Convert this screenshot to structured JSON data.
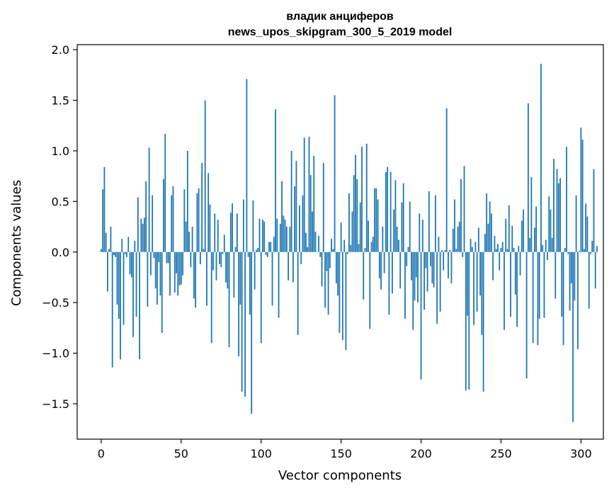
{
  "chart_data": {
    "type": "bar",
    "title": "владик анциферов",
    "subtitle": "news_upos_skipgram_300_5_2019 model",
    "xlabel": "Vector components",
    "ylabel": "Components values",
    "xlim": [
      -15,
      314
    ],
    "ylim": [
      -1.85,
      2.05
    ],
    "xticks": [
      0,
      50,
      100,
      150,
      200,
      250,
      300
    ],
    "yticks": [
      -1.5,
      -1.0,
      -0.5,
      0.0,
      0.5,
      1.0,
      1.5,
      2.0
    ],
    "ytick_labels": [
      "−1.5",
      "−1.0",
      "−0.5",
      "0.0",
      "0.5",
      "1.0",
      "1.5",
      "2.0"
    ],
    "grid": false,
    "color": "#1f77b4",
    "x_start": 0,
    "values": [
      0.03,
      0.62,
      0.84,
      0.19,
      -0.39,
      0.03,
      0.25,
      -1.14,
      -0.03,
      -0.05,
      -0.52,
      -0.66,
      -1.06,
      0.13,
      -0.72,
      -0.02,
      -0.05,
      0.15,
      -0.22,
      -0.25,
      -0.84,
      0.11,
      -0.64,
      0.54,
      -1.06,
      0.33,
      0.28,
      0.34,
      0.7,
      -0.54,
      1.03,
      -0.23,
      0.56,
      -0.06,
      -0.36,
      -0.52,
      -0.1,
      -0.43,
      -0.8,
      0.72,
      1.17,
      -0.11,
      -0.11,
      -0.43,
      0.56,
      0.65,
      -0.4,
      -0.21,
      -0.43,
      -0.33,
      -0.32,
      -0.23,
      0.62,
      0.3,
      1.0,
      0.2,
      -0.15,
      0.25,
      -0.46,
      -0.55,
      0.58,
      0.63,
      -0.12,
      0.88,
      0.03,
      1.5,
      -0.53,
      0.78,
      0.47,
      -0.9,
      -0.18,
      0.38,
      -0.28,
      0.32,
      -0.12,
      -0.15,
      -0.02,
      0.17,
      -0.3,
      -0.36,
      -0.94,
      0.39,
      0.48,
      -0.45,
      0.05,
      0.38,
      -1.03,
      -0.52,
      -1.38,
      0.52,
      -1.43,
      1.71,
      -0.05,
      -0.62,
      -1.6,
      0.51,
      -0.37,
      0.02,
      0.04,
      0.33,
      -0.9,
      0.32,
      0.3,
      -0.03,
      -0.05,
      0.1,
      0.1,
      -0.53,
      0.15,
      1.41,
      0.33,
      -0.65,
      0.28,
      0.7,
      0.36,
      0.32,
      0.25,
      -0.28,
      0.25,
      1.0,
      -0.3,
      0.65,
      0.9,
      -0.82,
      0.46,
      -0.12,
      0.56,
      1.13,
      0.19,
      0.05,
      1.14,
      0.76,
      0.4,
      0.95,
      0.2,
      0.0,
      0.16,
      -0.05,
      -0.34,
      0.88,
      -0.55,
      -0.19,
      -0.62,
      -0.16,
      0.13,
      0.03,
      1.55,
      -0.31,
      -0.43,
      -0.8,
      0.29,
      -0.87,
      0.12,
      -0.97,
      -0.02,
      0.58,
      0.07,
      0.4,
      0.76,
      0.96,
      0.72,
      0.08,
      0.49,
      1.04,
      -0.47,
      0.04,
      1.07,
      0.31,
      -0.76,
      0.1,
      0.15,
      0.63,
      0.63,
      0.52,
      -0.26,
      -0.37,
      0.25,
      -0.21,
      0.79,
      0.84,
      -0.62,
      0.79,
      -0.41,
      0.42,
      0.71,
      0.25,
      0.12,
      -0.36,
      0.49,
      0.68,
      -0.66,
      -0.14,
      0.05,
      0.5,
      -0.28,
      -0.77,
      -0.48,
      -0.25,
      -0.5,
      0.38,
      -1.26,
      0.32,
      -0.57,
      -0.16,
      -0.39,
      0.6,
      -0.14,
      -0.31,
      -0.35,
      0.56,
      -0.71,
      0.15,
      -0.59,
      0.02,
      -0.18,
      0.02,
      1.42,
      -0.26,
      0.02,
      -0.31,
      0.23,
      0.52,
      0.03,
      0.25,
      0.3,
      0.72,
      -0.05,
      0.85,
      -1.37,
      -0.63,
      -1.36,
      0.13,
      0.05,
      -0.72,
      0.1,
      -0.59,
      0.24,
      -0.43,
      -0.82,
      -1.38,
      0.18,
      0.58,
      0.28,
      0.5,
      0.38,
      -0.28,
      0.16,
      0.03,
      0.08,
      -0.18,
      0.04,
      0.1,
      -0.77,
      0.33,
      0.03,
      0.46,
      -0.64,
      0.26,
      0.04,
      -0.42,
      -0.74,
      0.06,
      -0.23,
      0.31,
      0.42,
      0.0,
      -1.25,
      1.47,
      0.14,
      0.74,
      -0.9,
      0.24,
      0.45,
      -0.92,
      -0.66,
      1.86,
      0.07,
      -0.65,
      0.12,
      -0.08,
      0.55,
      0.42,
      0.14,
      0.92,
      -0.46,
      0.82,
      0.68,
      0.73,
      -0.64,
      -0.92,
      0.04,
      1.04,
      -0.02,
      -0.58,
      -0.31,
      -1.68,
      -0.48,
      0.56,
      -0.96,
      0.01,
      1.23,
      1.11,
      0.03,
      0.48,
      0.35,
      -0.56,
      -0.02,
      0.11,
      0.82,
      -0.36,
      0.06
    ]
  }
}
